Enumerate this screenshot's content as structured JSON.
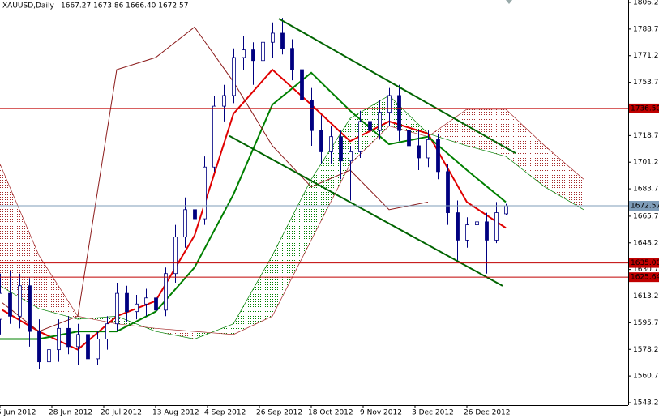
{
  "chart_data": {
    "type": "candlestick",
    "title": "XAUUSD,Daily",
    "ohlc_text": "1667.27 1673.86 1666.40 1672.57",
    "xlim": [
      -1,
      192.75
    ],
    "ylim": [
      1541.6,
      1807.8
    ],
    "xticks": [
      {
        "value": -1,
        "label": "5 Jun 2012"
      },
      {
        "value": 15,
        "label": "28 Jun 2012"
      },
      {
        "value": 31,
        "label": "20 Jul 2012"
      },
      {
        "value": 47,
        "label": "13 Aug 2012"
      },
      {
        "value": 63,
        "label": "4 Sep 2012"
      },
      {
        "value": 79,
        "label": "26 Sep 2012"
      },
      {
        "value": 95,
        "label": "18 Oct 2012"
      },
      {
        "value": 111,
        "label": "9 Nov 2012"
      },
      {
        "value": 127,
        "label": "3 Dec 2012"
      },
      {
        "value": 143,
        "label": "26 Dec 2012"
      }
    ],
    "yticks": [
      {
        "value": 1806.2,
        "label": "1806.20"
      },
      {
        "value": 1788.7,
        "label": "1788.70"
      },
      {
        "value": 1771.2,
        "label": "1771.20"
      },
      {
        "value": 1753.7,
        "label": "1753.70"
      },
      {
        "value": 1736.2,
        "label": "1736.20"
      },
      {
        "value": 1718.7,
        "label": "1718.70"
      },
      {
        "value": 1701.2,
        "label": "1701.20"
      },
      {
        "value": 1683.7,
        "label": "1683.70"
      },
      {
        "value": 1665.7,
        "label": "1665.70"
      },
      {
        "value": 1648.2,
        "label": "1648.20"
      },
      {
        "value": 1630.7,
        "label": "1630.70"
      },
      {
        "value": 1613.2,
        "label": "1613.20"
      },
      {
        "value": 1595.7,
        "label": "1595.70"
      },
      {
        "value": 1578.2,
        "label": "1578.20"
      },
      {
        "value": 1560.7,
        "label": "1560.70"
      },
      {
        "value": 1543.2,
        "label": "1543.20"
      }
    ],
    "candles": {
      "color": "#000080",
      "x": [
        -1,
        2,
        5,
        8,
        11,
        14,
        17,
        20,
        23,
        26,
        29,
        32,
        35,
        38,
        41,
        44,
        47,
        50,
        53,
        56,
        59,
        62,
        65,
        68,
        71,
        74,
        77,
        80,
        83,
        86,
        89,
        92,
        95,
        98,
        101,
        104,
        107,
        110,
        113,
        116,
        119,
        122,
        125,
        128,
        131,
        134,
        137,
        140,
        143,
        146,
        149,
        152,
        155
      ],
      "ohlc": [
        [
          1598,
          1628,
          1588,
          1615
        ],
        [
          1615,
          1630,
          1595,
          1600
        ],
        [
          1600,
          1628,
          1592,
          1620
        ],
        [
          1620,
          1625,
          1580,
          1590
        ],
        [
          1590,
          1598,
          1565,
          1570
        ],
        [
          1570,
          1585,
          1552,
          1578
        ],
        [
          1578,
          1598,
          1570,
          1592
        ],
        [
          1592,
          1600,
          1575,
          1580
        ],
        [
          1580,
          1595,
          1568,
          1588
        ],
        [
          1588,
          1592,
          1565,
          1572
        ],
        [
          1572,
          1590,
          1568,
          1585
        ],
        [
          1585,
          1600,
          1578,
          1595
        ],
        [
          1595,
          1622,
          1590,
          1615
        ],
        [
          1615,
          1620,
          1596,
          1603
        ],
        [
          1603,
          1614,
          1598,
          1608
        ],
        [
          1608,
          1618,
          1600,
          1612
        ],
        [
          1612,
          1618,
          1596,
          1604
        ],
        [
          1604,
          1632,
          1600,
          1628
        ],
        [
          1628,
          1660,
          1622,
          1652
        ],
        [
          1652,
          1678,
          1645,
          1670
        ],
        [
          1670,
          1690,
          1660,
          1664
        ],
        [
          1664,
          1705,
          1660,
          1698
        ],
        [
          1698,
          1745,
          1695,
          1738
        ],
        [
          1738,
          1752,
          1728,
          1745
        ],
        [
          1745,
          1776,
          1740,
          1770
        ],
        [
          1770,
          1784,
          1762,
          1775
        ],
        [
          1775,
          1780,
          1752,
          1768
        ],
        [
          1768,
          1790,
          1764,
          1780
        ],
        [
          1780,
          1793,
          1770,
          1786
        ],
        [
          1786,
          1796,
          1772,
          1776
        ],
        [
          1776,
          1782,
          1755,
          1762
        ],
        [
          1762,
          1768,
          1735,
          1742
        ],
        [
          1742,
          1750,
          1712,
          1722
        ],
        [
          1722,
          1732,
          1700,
          1708
        ],
        [
          1708,
          1725,
          1700,
          1718
        ],
        [
          1718,
          1722,
          1690,
          1702
        ],
        [
          1702,
          1712,
          1676,
          1708
        ],
        [
          1708,
          1735,
          1704,
          1728
        ],
        [
          1728,
          1738,
          1715,
          1722
        ],
        [
          1722,
          1742,
          1716,
          1734
        ],
        [
          1734,
          1750,
          1725,
          1745
        ],
        [
          1745,
          1752,
          1715,
          1722
        ],
        [
          1722,
          1730,
          1700,
          1712
        ],
        [
          1712,
          1722,
          1696,
          1704
        ],
        [
          1704,
          1722,
          1698,
          1716
        ],
        [
          1716,
          1720,
          1690,
          1695
        ],
        [
          1695,
          1700,
          1660,
          1668
        ],
        [
          1668,
          1676,
          1636,
          1650
        ],
        [
          1650,
          1665,
          1645,
          1660
        ],
        [
          1660,
          1690,
          1650,
          1662
        ],
        [
          1662,
          1668,
          1628,
          1650
        ],
        [
          1650,
          1675,
          1648,
          1668
        ],
        [
          1667.27,
          1673.86,
          1666.4,
          1672.57
        ]
      ]
    },
    "lines": [
      {
        "color": "#e00000",
        "width": 2,
        "x": [
          -1,
          11,
          23,
          35,
          47,
          59,
          71,
          83,
          95,
          107,
          119,
          131,
          143,
          155
        ],
        "values": [
          1605,
          1590,
          1578,
          1600,
          1610,
          1653,
          1733,
          1762,
          1739,
          1715,
          1728,
          1720,
          1675,
          1658
        ]
      },
      {
        "color": "#008000",
        "width": 2,
        "x": [
          -1,
          11,
          23,
          35,
          47,
          59,
          71,
          83,
          95,
          107,
          119,
          131,
          143,
          155
        ],
        "values": [
          1585,
          1585,
          1590,
          1590,
          1603,
          1632,
          1680,
          1739,
          1760,
          1735,
          1713,
          1718,
          1696,
          1675
        ]
      },
      {
        "color": "#8b1a1a",
        "width": 1,
        "x": [
          -1,
          11,
          23,
          35,
          47,
          59,
          71,
          83,
          95,
          107,
          119,
          131,
          143,
          155
        ],
        "values": [
          1610,
          1590,
          1600,
          1762,
          1770,
          1790,
          1754,
          1712,
          1685,
          1696,
          1670,
          1675,
          null,
          null
        ]
      }
    ],
    "cloud": {
      "up_color": "#008000",
      "down_color": "#a52a2a",
      "x": [
        -1,
        11,
        23,
        35,
        47,
        59,
        71,
        83,
        95,
        107,
        119,
        131,
        143,
        155,
        167,
        179
      ],
      "span_a": [
        1620,
        1605,
        1598,
        1600,
        1590,
        1585,
        1595,
        1640,
        1690,
        1730,
        1745,
        1720,
        1712,
        1705,
        1685,
        1670
      ],
      "span_b": [
        1700,
        1640,
        1600,
        1595,
        1592,
        1590,
        1588,
        1600,
        1650,
        1700,
        1725,
        1718,
        1736,
        1736,
        1712,
        1690
      ]
    },
    "trendlines": [
      {
        "color": "#006400",
        "x": [
          85,
          158
        ],
        "y": [
          1795.5,
          1707.1
        ]
      },
      {
        "color": "#006400",
        "x": [
          69.75,
          154
        ],
        "y": [
          1718.5,
          1619.9
        ]
      }
    ],
    "hlines": [
      {
        "value": 1736.5,
        "label": "1736.50",
        "color": "#c00000"
      },
      {
        "value": 1672.57,
        "color": "#7f9db9"
      },
      {
        "value": 1635.0,
        "label": "1635.00",
        "color": "#c00000"
      },
      {
        "value": 1625.64,
        "color": "#c00000"
      }
    ]
  }
}
